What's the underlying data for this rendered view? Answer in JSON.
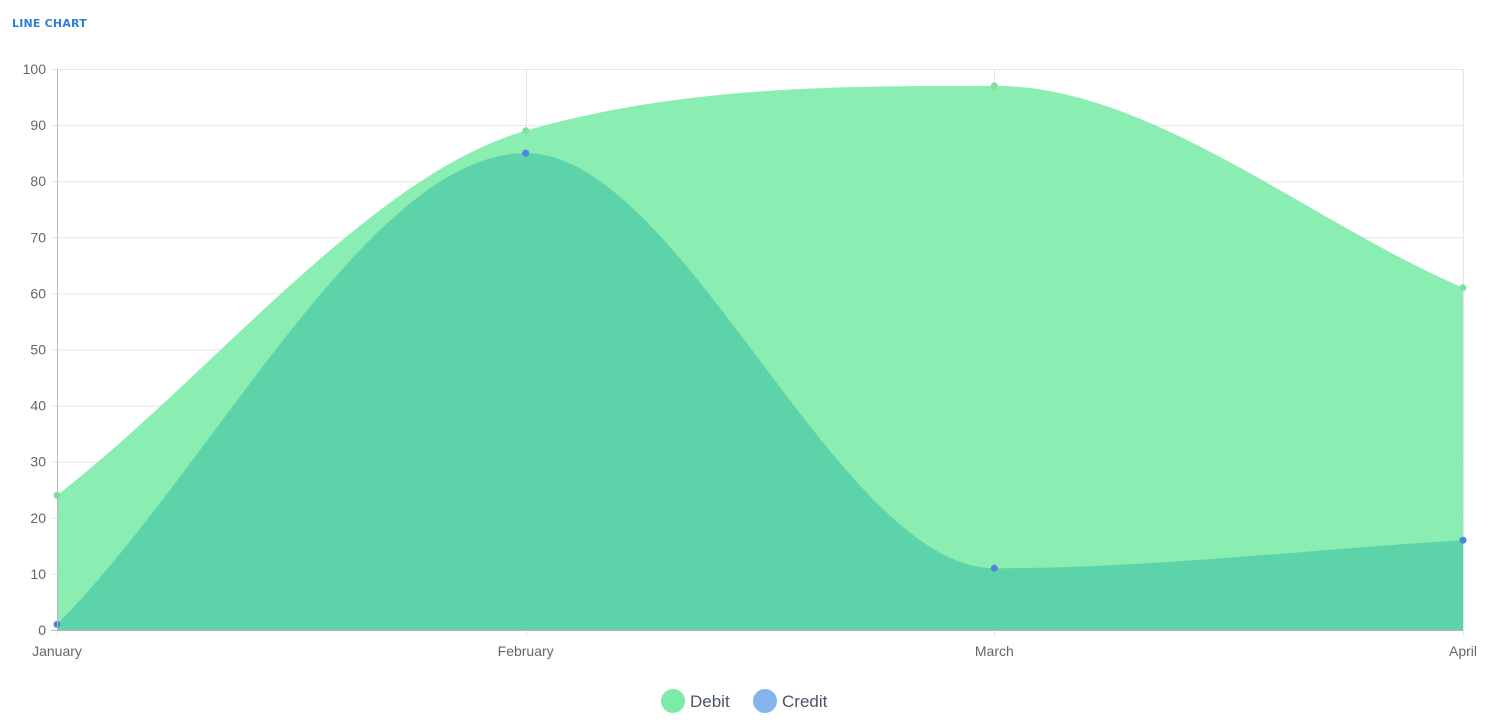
{
  "card": {
    "title": "LINE CHART"
  },
  "chart_data": {
    "type": "area",
    "title": "",
    "xlabel": "",
    "ylabel": "",
    "categories": [
      "January",
      "February",
      "March",
      "April"
    ],
    "ylim": [
      0,
      100
    ],
    "yticks": [
      0,
      10,
      20,
      30,
      40,
      50,
      60,
      70,
      80,
      90,
      100
    ],
    "grid": true,
    "legend_position": "bottom",
    "series": [
      {
        "name": "Debit",
        "values": [
          24,
          89,
          97,
          61
        ],
        "color": "#7deba8",
        "point_color": "#7ee0a1"
      },
      {
        "name": "Credit",
        "values": [
          1,
          85,
          11,
          16
        ],
        "color": "#54cea8",
        "point_color": "#4c86e0",
        "legend_color": "#85b3ee"
      }
    ]
  }
}
